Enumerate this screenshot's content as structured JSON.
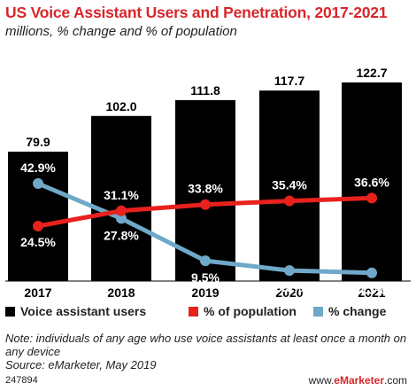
{
  "header": {
    "title": "US Voice Assistant Users and Penetration, 2017-2021",
    "subtitle": "millions, % change and % of population"
  },
  "chart_data": {
    "type": "bar",
    "categories": [
      "2017",
      "2018",
      "2019",
      "2020",
      "2021"
    ],
    "series": [
      {
        "name": "Voice assistant users",
        "type": "bar",
        "color": "#000000",
        "values": [
          79.9,
          102.0,
          111.8,
          117.7,
          122.7
        ],
        "labels": [
          "79.9",
          "102.0",
          "111.8",
          "117.7",
          "122.7"
        ]
      },
      {
        "name": "% of population",
        "type": "line",
        "color": "#e8211d",
        "values": [
          24.5,
          31.1,
          33.8,
          35.4,
          36.6
        ],
        "labels": [
          "24.5%",
          "31.1%",
          "33.8%",
          "35.4%",
          "36.6%"
        ]
      },
      {
        "name": "% change",
        "type": "line",
        "color": "#6fa8c8",
        "values": [
          42.9,
          27.8,
          9.5,
          5.3,
          4.3
        ],
        "labels": [
          "42.9%",
          "27.8%",
          "9.5%",
          "5.3%",
          "4.3%"
        ]
      }
    ],
    "legend_position": "bottom",
    "grid": false
  },
  "note": "Note: individuals of any age who use voice assistants at least once a month on any device",
  "source": "Source: eMarketer, May 2019",
  "footer": {
    "id": "247894",
    "site_prefix": "www.",
    "site_brand": "eMarketer",
    "site_suffix": ".com"
  }
}
